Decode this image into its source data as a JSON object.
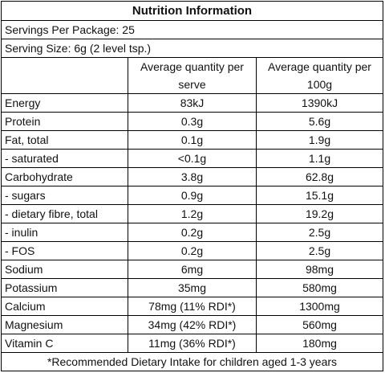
{
  "title": "Nutrition Information",
  "servings_per_package": "Servings Per Package: 25",
  "serving_size": "Serving Size: 6g (2 level tsp.)",
  "columns": [
    "",
    "Average quantity per serve",
    "Average quantity per 100g"
  ],
  "rows": [
    {
      "name": "Energy",
      "per_serve": "83kJ",
      "per_100g": "1390kJ"
    },
    {
      "name": "Protein",
      "per_serve": "0.3g",
      "per_100g": "5.6g"
    },
    {
      "name": "Fat, total",
      "per_serve": "0.1g",
      "per_100g": "1.9g"
    },
    {
      "name": "- saturated",
      "per_serve": "<0.1g",
      "per_100g": "1.1g"
    },
    {
      "name": "Carbohydrate",
      "per_serve": "3.8g",
      "per_100g": "62.8g"
    },
    {
      "name": "- sugars",
      "per_serve": "0.9g",
      "per_100g": "15.1g"
    },
    {
      "name": "- dietary fibre, total",
      "per_serve": "1.2g",
      "per_100g": "19.2g"
    },
    {
      "name": "- inulin",
      "per_serve": "0.2g",
      "per_100g": "2.5g"
    },
    {
      "name": "- FOS",
      "per_serve": "0.2g",
      "per_100g": "2.5g"
    },
    {
      "name": "Sodium",
      "per_serve": "6mg",
      "per_100g": "98mg"
    },
    {
      "name": "Potassium",
      "per_serve": "35mg",
      "per_100g": "580mg"
    },
    {
      "name": "Calcium",
      "per_serve": "78mg (11% RDI*)",
      "per_100g": "1300mg"
    },
    {
      "name": "Magnesium",
      "per_serve": "34mg (42% RDI*)",
      "per_100g": "560mg"
    },
    {
      "name": "Vitamin C",
      "per_serve": "11mg (36% RDI*)",
      "per_100g": "180mg"
    }
  ],
  "footnote": "*Recommended Dietary Intake for children aged 1-3 years"
}
